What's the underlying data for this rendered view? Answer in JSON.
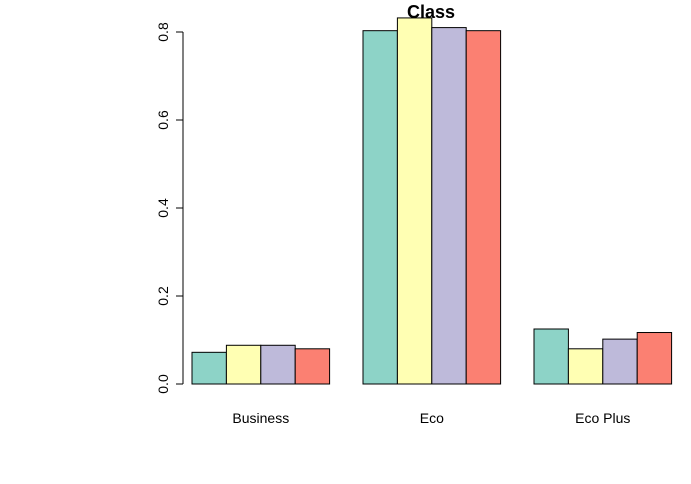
{
  "chart_data": {
    "type": "bar",
    "title": "Class",
    "xlabel": "",
    "ylabel": "",
    "categories": [
      "Business",
      "Eco",
      "Eco Plus"
    ],
    "series": [
      {
        "values": [
          0.072,
          0.803,
          0.125
        ],
        "color": "#8DD3C7"
      },
      {
        "values": [
          0.088,
          0.832,
          0.08
        ],
        "color": "#FFFFB3"
      },
      {
        "values": [
          0.088,
          0.81,
          0.102
        ],
        "color": "#BEBADA"
      },
      {
        "values": [
          0.08,
          0.803,
          0.117
        ],
        "color": "#FB8072"
      }
    ],
    "ylim": [
      0,
      0.832
    ],
    "yticks": [
      0.0,
      0.2,
      0.4,
      0.6,
      0.8
    ],
    "ytick_labels": [
      "0.0",
      "0.2",
      "0.4",
      "0.6",
      "0.8"
    ],
    "grid": false,
    "legend": "none"
  }
}
